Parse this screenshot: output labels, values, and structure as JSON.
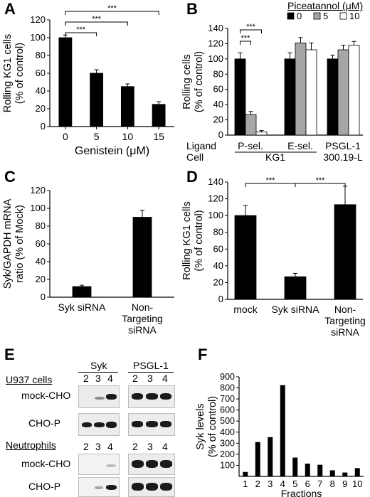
{
  "colors": {
    "bar": "#000000",
    "bar_mid": "#a6a6a6",
    "bar_light": "#ffffff",
    "axis": "#000000"
  },
  "panels": {
    "A": {
      "letter": "A"
    },
    "B": {
      "letter": "B",
      "legend_title": "Piceatannol (μM)",
      "legend_items": [
        "0",
        "5",
        "10"
      ],
      "row_labels": [
        "Ligand",
        "Cell"
      ],
      "ligands": [
        "P-sel.",
        "E-sel.",
        "PSGL-1"
      ],
      "cells": [
        "KG1",
        "300.19-L"
      ]
    },
    "C": {
      "letter": "C"
    },
    "D": {
      "letter": "D"
    },
    "E": {
      "letter": "E",
      "groups": [
        "Syk",
        "PSGL-1"
      ],
      "lane_numbers": [
        "2",
        "3",
        "4"
      ],
      "sections": [
        {
          "title": "U937 cells",
          "rows": [
            "mock-CHO",
            "CHO-P"
          ]
        },
        {
          "title": "Neutrophils",
          "rows": [
            "mock-CHO",
            "CHO-P"
          ]
        }
      ]
    },
    "F": {
      "letter": "F"
    }
  },
  "chart_data": [
    {
      "panel": "A",
      "type": "bar",
      "categories": [
        "0",
        "5",
        "10",
        "15"
      ],
      "values": [
        100,
        60,
        45,
        25
      ],
      "errors": [
        3,
        4,
        3,
        3
      ],
      "xlabel": "Genistein (μM)",
      "ylabel": [
        "Rolling KG1 cells",
        "(% of control)"
      ],
      "ylim": [
        0,
        120
      ],
      "yticks": [
        "0",
        "20",
        "40",
        "60",
        "80",
        "100",
        "120"
      ],
      "significance": [
        {
          "from": 0,
          "to": 1,
          "label": "***"
        },
        {
          "from": 0,
          "to": 2,
          "label": "***"
        },
        {
          "from": 0,
          "to": 3,
          "label": "***"
        }
      ]
    },
    {
      "panel": "B",
      "type": "bar",
      "groups": [
        "P-sel.",
        "E-sel.",
        "PSGL-1"
      ],
      "series": [
        {
          "name": "0",
          "values": [
            100,
            100,
            100
          ],
          "errors": [
            8,
            8,
            5
          ]
        },
        {
          "name": "5",
          "values": [
            27,
            121,
            112
          ],
          "errors": [
            4,
            7,
            6
          ]
        },
        {
          "name": "10",
          "values": [
            4,
            112,
            118
          ],
          "errors": [
            2,
            9,
            5
          ]
        }
      ],
      "ylabel": [
        "Rolling cells",
        "(% of control)"
      ],
      "ylim": [
        0,
        140
      ],
      "yticks": [
        "0",
        "20",
        "40",
        "60",
        "80",
        "100",
        "120",
        "140"
      ],
      "significance": [
        {
          "from": "P-sel.:0",
          "to": "P-sel.:5",
          "label": "***"
        },
        {
          "from": "P-sel.:0",
          "to": "P-sel.:10",
          "label": "***"
        }
      ]
    },
    {
      "panel": "C",
      "type": "bar",
      "categories": [
        [
          "Syk siRNA"
        ],
        [
          "Non-",
          "Targeting",
          "siRNA"
        ]
      ],
      "values": [
        12,
        90
      ],
      "errors": [
        1.5,
        8
      ],
      "ylabel": [
        "Syk/GAPDH mRNA",
        "ratio (% of Mock)"
      ],
      "ylim": [
        0,
        120
      ],
      "yticks": [
        "0",
        "20",
        "40",
        "60",
        "80",
        "100",
        "120"
      ]
    },
    {
      "panel": "D",
      "type": "bar",
      "categories": [
        [
          "mock"
        ],
        [
          "Syk siRNA"
        ],
        [
          "Non-",
          "Targeting",
          "siRNA"
        ]
      ],
      "values": [
        100,
        27,
        113
      ],
      "errors": [
        12,
        4,
        22
      ],
      "ylabel": [
        "Rolling KG1 cells",
        "(% of control)"
      ],
      "ylim": [
        0,
        140
      ],
      "yticks": [
        "0",
        "20",
        "40",
        "60",
        "80",
        "100",
        "120",
        "140"
      ],
      "significance": [
        {
          "from": 0,
          "to": 1,
          "label": "***"
        },
        {
          "from": 1,
          "to": 2,
          "label": "***"
        }
      ]
    },
    {
      "panel": "F",
      "type": "bar",
      "categories": [
        "1",
        "2",
        "3",
        "4",
        "5",
        "6",
        "7",
        "8",
        "9",
        "10"
      ],
      "values": [
        40,
        310,
        355,
        825,
        170,
        115,
        105,
        55,
        35,
        75
      ],
      "xlabel": "Fractions",
      "ylabel": [
        "Syk levels",
        "(% of control)"
      ],
      "ylim": [
        0,
        900
      ],
      "yticks": [
        "100",
        "200",
        "300",
        "400",
        "500",
        "600",
        "700",
        "800",
        "900"
      ]
    }
  ]
}
